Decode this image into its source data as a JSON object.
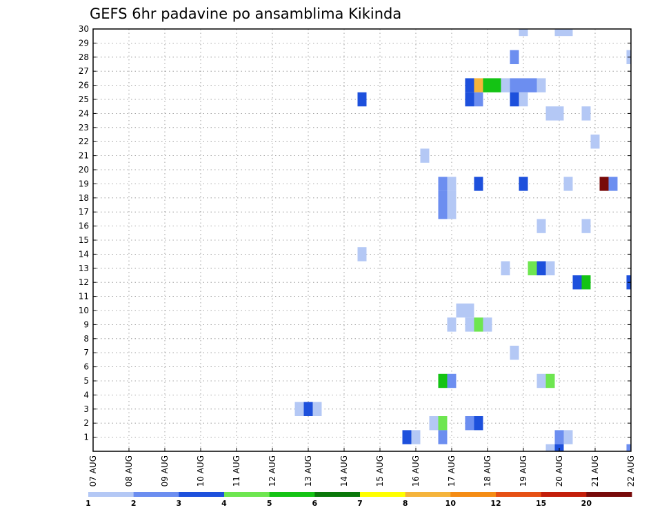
{
  "chart_data": {
    "type": "heatmap",
    "title": "GEFS 6hr padavine po ansamblima Kikinda",
    "xlabel": "",
    "ylabel": "",
    "x_ticks": [
      "07 AUG",
      "08 AUG",
      "09 AUG",
      "10 AUG",
      "11 AUG",
      "12 AUG",
      "13 AUG",
      "14 AUG",
      "15 AUG",
      "16 AUG",
      "17 AUG",
      "18 AUG",
      "19 AUG",
      "20 AUG",
      "21 AUG",
      "22 AUG"
    ],
    "y_ticks": [
      "1",
      "2",
      "3",
      "4",
      "5",
      "6",
      "7",
      "8",
      "9",
      "10",
      "11",
      "12",
      "13",
      "14",
      "15",
      "16",
      "17",
      "18",
      "19",
      "20",
      "21",
      "22",
      "23",
      "24",
      "25",
      "26",
      "27",
      "28",
      "29",
      "30"
    ],
    "x_range_days": [
      0,
      15
    ],
    "y_range": [
      0,
      30
    ],
    "grid": true,
    "x_unit": "days since 07 AUG 00z, 6-hour steps",
    "colorbar": {
      "labels": [
        "1",
        "2",
        "3",
        "4",
        "5",
        "6",
        "7",
        "8",
        "10",
        "12",
        "15",
        "20"
      ],
      "colors": [
        "#b4c8f5",
        "#6c8ef0",
        "#1d50dc",
        "#6ee650",
        "#14c314",
        "#0a780a",
        "#ffff00",
        "#f5b43c",
        "#f58c14",
        "#e65014",
        "#c31e0a",
        "#780a0a"
      ]
    },
    "cells": [
      {
        "day": 12.0,
        "member": 30,
        "level": 1
      },
      {
        "day": 13.0,
        "member": 30,
        "level": 1
      },
      {
        "day": 13.25,
        "member": 30,
        "level": 1
      },
      {
        "day": 11.75,
        "member": 28,
        "level": 2
      },
      {
        "day": 15.0,
        "member": 28,
        "level": 1
      },
      {
        "day": 10.5,
        "member": 26,
        "level": 3
      },
      {
        "day": 10.75,
        "member": 26,
        "level": 8
      },
      {
        "day": 11.0,
        "member": 26,
        "level": 5
      },
      {
        "day": 11.25,
        "member": 26,
        "level": 5
      },
      {
        "day": 11.5,
        "member": 26,
        "level": 1
      },
      {
        "day": 11.75,
        "member": 26,
        "level": 2
      },
      {
        "day": 12.0,
        "member": 26,
        "level": 2
      },
      {
        "day": 12.25,
        "member": 26,
        "level": 2
      },
      {
        "day": 12.5,
        "member": 26,
        "level": 1
      },
      {
        "day": 7.5,
        "member": 25,
        "level": 3
      },
      {
        "day": 10.5,
        "member": 25,
        "level": 3
      },
      {
        "day": 10.75,
        "member": 25,
        "level": 2
      },
      {
        "day": 11.75,
        "member": 25,
        "level": 3
      },
      {
        "day": 12.0,
        "member": 25,
        "level": 1
      },
      {
        "day": 12.75,
        "member": 24,
        "level": 1
      },
      {
        "day": 13.0,
        "member": 24,
        "level": 1
      },
      {
        "day": 13.75,
        "member": 24,
        "level": 1
      },
      {
        "day": 14.0,
        "member": 22,
        "level": 1
      },
      {
        "day": 9.25,
        "member": 21,
        "level": 1
      },
      {
        "day": 9.75,
        "member": 19,
        "level": 2
      },
      {
        "day": 10.0,
        "member": 19,
        "level": 1
      },
      {
        "day": 10.75,
        "member": 19,
        "level": 3
      },
      {
        "day": 12.0,
        "member": 19,
        "level": 3
      },
      {
        "day": 13.25,
        "member": 19,
        "level": 1
      },
      {
        "day": 14.25,
        "member": 19,
        "level": 12
      },
      {
        "day": 14.5,
        "member": 19,
        "level": 2
      },
      {
        "day": 9.75,
        "member": 18,
        "level": 2
      },
      {
        "day": 10.0,
        "member": 18,
        "level": 1
      },
      {
        "day": 9.75,
        "member": 17,
        "level": 2
      },
      {
        "day": 10.0,
        "member": 17,
        "level": 1
      },
      {
        "day": 12.5,
        "member": 16,
        "level": 1
      },
      {
        "day": 13.75,
        "member": 16,
        "level": 1
      },
      {
        "day": 7.5,
        "member": 14,
        "level": 1
      },
      {
        "day": 11.5,
        "member": 13,
        "level": 1
      },
      {
        "day": 12.25,
        "member": 13,
        "level": 4
      },
      {
        "day": 12.5,
        "member": 13,
        "level": 3
      },
      {
        "day": 12.75,
        "member": 13,
        "level": 1
      },
      {
        "day": 13.5,
        "member": 12,
        "level": 3
      },
      {
        "day": 13.75,
        "member": 12,
        "level": 5
      },
      {
        "day": 15.0,
        "member": 12,
        "level": 3
      },
      {
        "day": 10.25,
        "member": 10,
        "level": 1
      },
      {
        "day": 10.5,
        "member": 10,
        "level": 1
      },
      {
        "day": 10.0,
        "member": 9,
        "level": 1
      },
      {
        "day": 10.5,
        "member": 9,
        "level": 1
      },
      {
        "day": 10.75,
        "member": 9,
        "level": 4
      },
      {
        "day": 11.0,
        "member": 9,
        "level": 1
      },
      {
        "day": 11.75,
        "member": 7,
        "level": 1
      },
      {
        "day": 9.75,
        "member": 5,
        "level": 5
      },
      {
        "day": 10.0,
        "member": 5,
        "level": 2
      },
      {
        "day": 12.5,
        "member": 5,
        "level": 1
      },
      {
        "day": 12.75,
        "member": 5,
        "level": 4
      },
      {
        "day": 5.75,
        "member": 3,
        "level": 1
      },
      {
        "day": 6.0,
        "member": 3,
        "level": 3
      },
      {
        "day": 6.25,
        "member": 3,
        "level": 1
      },
      {
        "day": 9.5,
        "member": 2,
        "level": 1
      },
      {
        "day": 9.75,
        "member": 2,
        "level": 4
      },
      {
        "day": 10.5,
        "member": 2,
        "level": 2
      },
      {
        "day": 10.75,
        "member": 2,
        "level": 3
      },
      {
        "day": 8.75,
        "member": 1,
        "level": 3
      },
      {
        "day": 9.0,
        "member": 1,
        "level": 1
      },
      {
        "day": 9.75,
        "member": 1,
        "level": 2
      },
      {
        "day": 13.0,
        "member": 1,
        "level": 2
      },
      {
        "day": 13.25,
        "member": 1,
        "level": 1
      },
      {
        "day": 12.75,
        "member": 0,
        "level": 1
      },
      {
        "day": 13.0,
        "member": 0,
        "level": 3
      },
      {
        "day": 15.0,
        "member": 0,
        "level": 2
      }
    ]
  }
}
